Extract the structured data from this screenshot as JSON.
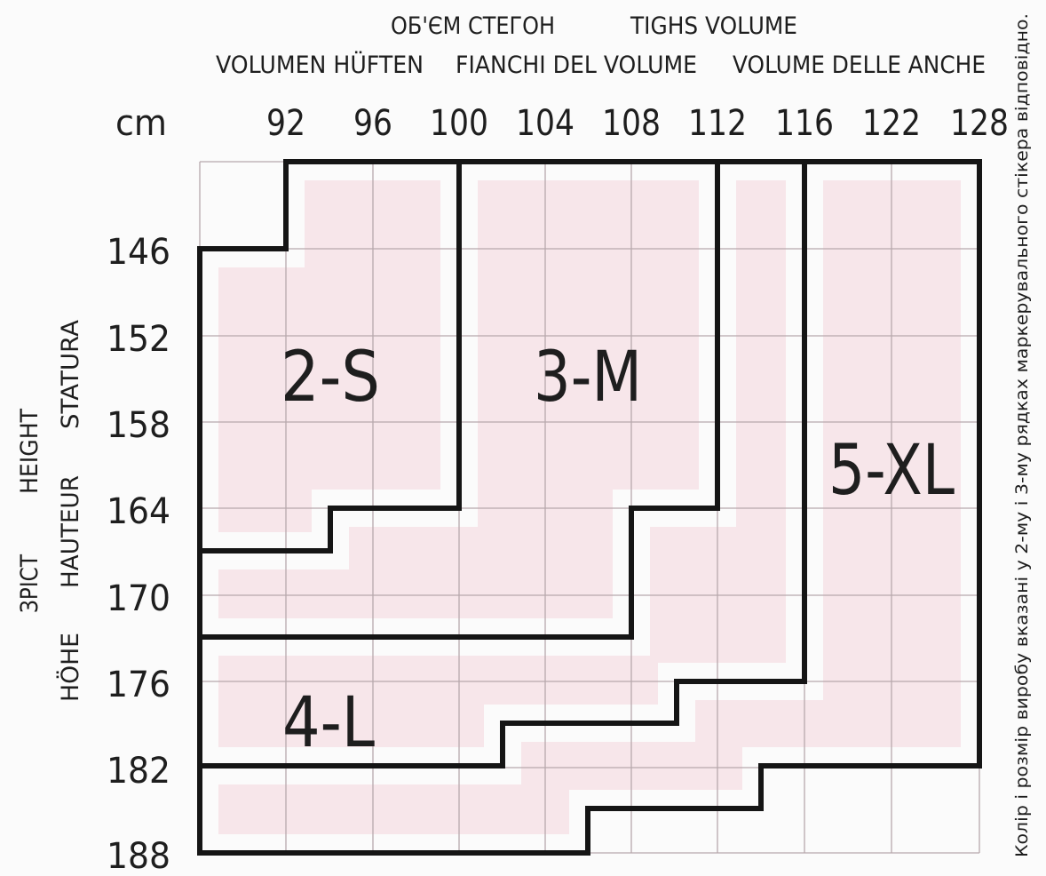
{
  "header": {
    "line1": [
      "ОБ'ЄМ СТЕГОН",
      "TIGHS VOLUME"
    ],
    "line2": [
      "VOLUMEN HÜFTEN",
      "FIANCHI DEL VOLUME",
      "VOLUME DELLE ANCHE"
    ]
  },
  "unit": "cm",
  "hip_values": [
    "92",
    "96",
    "100",
    "104",
    "108",
    "112",
    "116",
    "122",
    "128"
  ],
  "height_values": [
    "146",
    "152",
    "158",
    "164",
    "170",
    "176",
    "182",
    "188"
  ],
  "height_labels": {
    "col1": [
      "ЗРІСТ",
      "HEIGHT"
    ],
    "col2": [
      "HÖHE",
      "HAUTEUR",
      "STATURA"
    ]
  },
  "sizes": [
    {
      "label": "2-S"
    },
    {
      "label": "3-M"
    },
    {
      "label": "4-L"
    },
    {
      "label": "5-XL"
    }
  ],
  "note": "Колір і розмір виробу вказані у 2-му і 3-му рядках маркерувального стікера відповідно.",
  "colors": {
    "fill": "#f7e6ea",
    "grid": "#b7a8ac",
    "outline": "#151515",
    "background": "#fbfbfb"
  }
}
